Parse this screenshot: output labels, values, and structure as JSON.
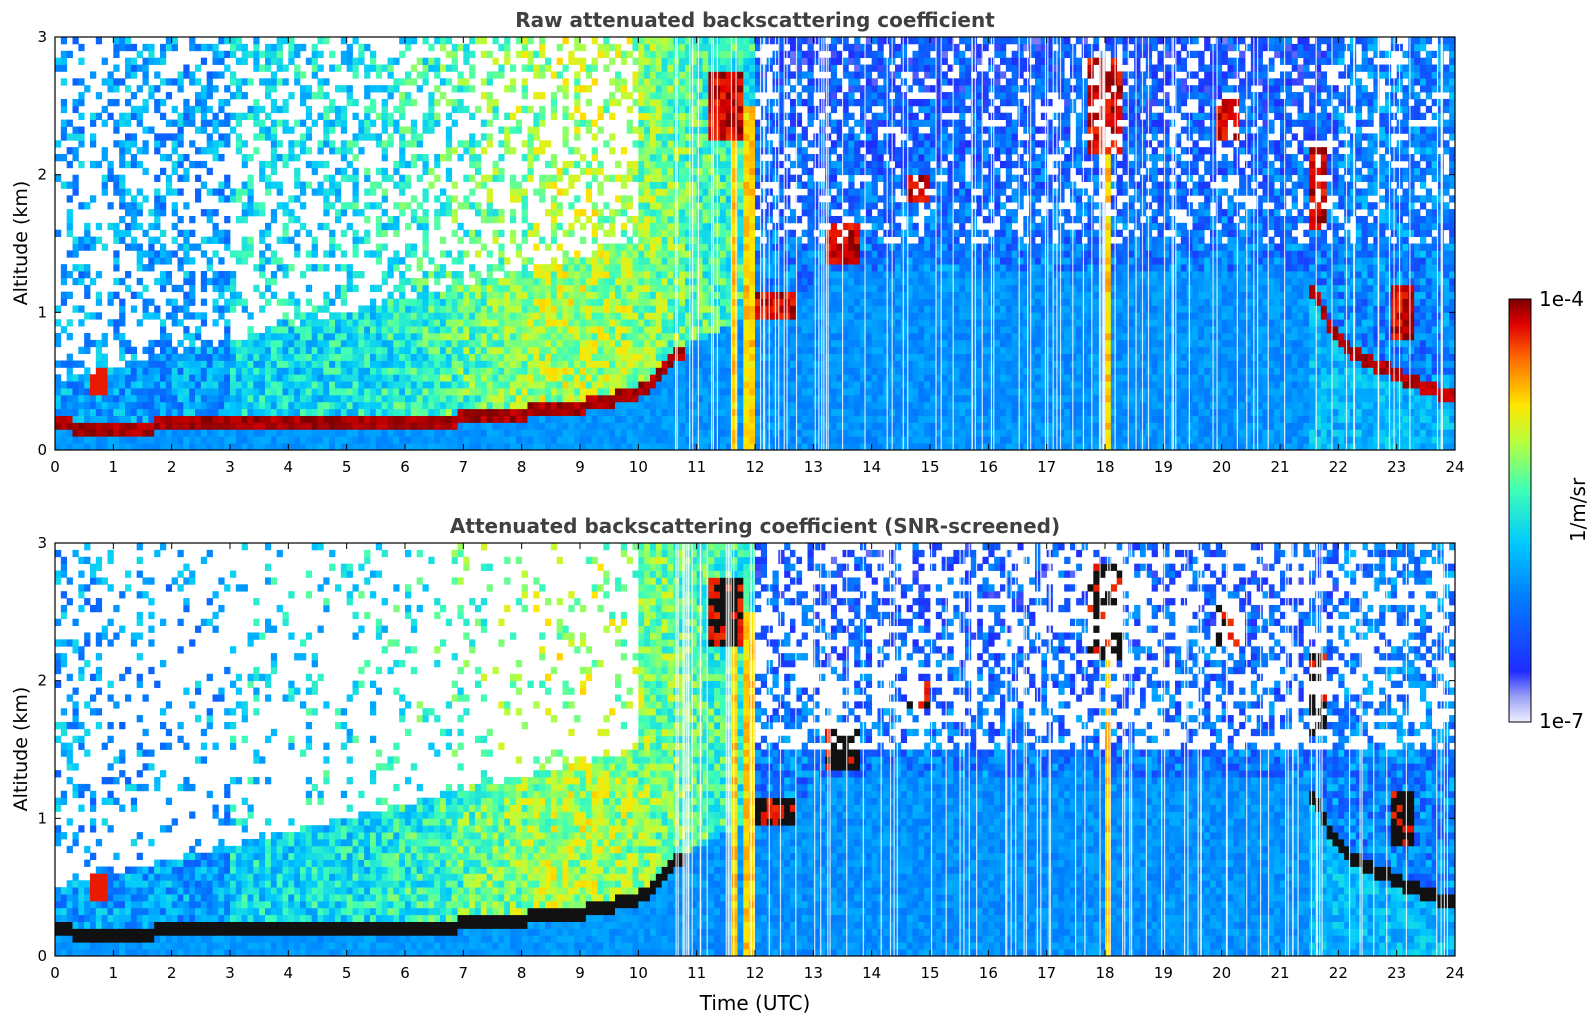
{
  "chart_data": [
    {
      "type": "heatmap",
      "title": "Raw attenuated backscattering coefficient",
      "xlabel": "",
      "ylabel": "Altitude (km)",
      "xlim": [
        0,
        24
      ],
      "ylim": [
        0,
        3
      ],
      "x_ticks": [
        "0",
        "1",
        "2",
        "3",
        "4",
        "5",
        "6",
        "7",
        "8",
        "9",
        "10",
        "11",
        "12",
        "13",
        "14",
        "15",
        "16",
        "17",
        "18",
        "19",
        "20",
        "21",
        "22",
        "23",
        "24"
      ],
      "y_ticks": [
        "0",
        "1",
        "2",
        "3"
      ],
      "features": {
        "boundary_layer_top_km": [
          [
            0,
            0.2
          ],
          [
            1,
            0.15
          ],
          [
            2,
            0.2
          ],
          [
            3,
            0.2
          ],
          [
            4,
            0.22
          ],
          [
            5,
            0.22
          ],
          [
            6,
            0.2
          ],
          [
            7,
            0.24
          ],
          [
            8,
            0.28
          ],
          [
            9,
            0.33
          ],
          [
            10,
            0.42
          ],
          [
            10.8,
            0.75
          ]
        ],
        "evening_layer_top_km": [
          [
            21.5,
            1.2
          ],
          [
            22,
            0.8
          ],
          [
            22.5,
            0.65
          ],
          [
            23,
            0.55
          ],
          [
            23.8,
            0.4
          ]
        ],
        "clouds": [
          {
            "x": 11.5,
            "y": 2.5,
            "label": "cloud"
          },
          {
            "x": 12.3,
            "y": 1.05,
            "label": "cloud"
          },
          {
            "x": 13.5,
            "y": 1.5,
            "label": "cloud"
          },
          {
            "x": 14.8,
            "y": 1.9,
            "label": "cloud"
          },
          {
            "x": 18.0,
            "y": 2.5,
            "label": "cloud"
          },
          {
            "x": 20.1,
            "y": 2.4,
            "label": "cloud"
          }
        ],
        "noise_level": "high"
      }
    },
    {
      "type": "heatmap",
      "title": "Attenuated backscattering coefficient (SNR-screened)",
      "xlabel": "Time (UTC)",
      "ylabel": "Altitude (km)",
      "xlim": [
        0,
        24
      ],
      "ylim": [
        0,
        3
      ],
      "x_ticks": [
        "0",
        "1",
        "2",
        "3",
        "4",
        "5",
        "6",
        "7",
        "8",
        "9",
        "10",
        "11",
        "12",
        "13",
        "14",
        "15",
        "16",
        "17",
        "18",
        "19",
        "20",
        "21",
        "22",
        "23",
        "24"
      ],
      "y_ticks": [
        "0",
        "1",
        "2",
        "3"
      ],
      "features": {
        "boundary_layer_top_km": [
          [
            0,
            0.2
          ],
          [
            1,
            0.15
          ],
          [
            2,
            0.2
          ],
          [
            3,
            0.2
          ],
          [
            4,
            0.22
          ],
          [
            5,
            0.22
          ],
          [
            6,
            0.2
          ],
          [
            7,
            0.24
          ],
          [
            8,
            0.28
          ],
          [
            9,
            0.33
          ],
          [
            10,
            0.42
          ],
          [
            10.8,
            0.75
          ]
        ],
        "evening_layer_top_km": [
          [
            21.5,
            1.2
          ],
          [
            22,
            0.8
          ],
          [
            22.5,
            0.65
          ],
          [
            23,
            0.55
          ],
          [
            23.8,
            0.4
          ]
        ],
        "screened_flat_layer_km": 0.4,
        "noise_level": "low"
      }
    }
  ],
  "colorbar": {
    "max_label": "1e-4",
    "min_label": "1e-7",
    "label": "1/m/sr",
    "scale": "log",
    "colormap": "jet"
  },
  "colors": {
    "title_text": "#404040",
    "axis": "#000000"
  }
}
